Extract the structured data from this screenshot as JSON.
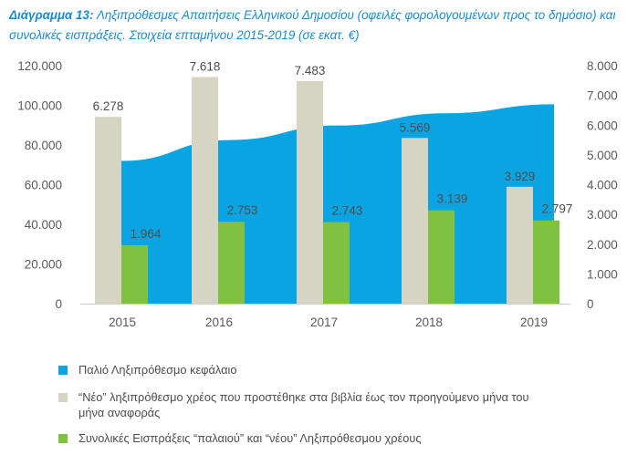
{
  "title": {
    "prefix": "Διάγραμμα 13:",
    "text": "Ληξιπρόθεσμες Απαιτήσεις Ελληνικού Δημοσίου (οφειλές φορολογουμένων προς το δημόσιο) και συνολικές εισπράξεις. Στοιχεία επταμήνου 2015-2019 (σε εκατ. €)"
  },
  "colors": {
    "old_area": "#0aa4e2",
    "new_bars": "#d6d5c4",
    "collections_bars": "#80c142",
    "title": "#1a8bcf",
    "text": "#4d4d4d"
  },
  "chart_data": {
    "type": "bar",
    "categories": [
      "2015",
      "2016",
      "2017",
      "2018",
      "2019"
    ],
    "left_axis": {
      "ylim": [
        0,
        120000
      ],
      "ticks": [
        "0",
        "20.000",
        "40.000",
        "60.000",
        "80.000",
        "100.000",
        "120.000"
      ],
      "tick_values": [
        0,
        20000,
        40000,
        60000,
        80000,
        100000,
        120000
      ]
    },
    "right_axis": {
      "ylim": [
        0,
        8000
      ],
      "ticks": [
        "0",
        "1.000",
        "2.000",
        "3.000",
        "4.000",
        "5.000",
        "6.000",
        "7.000",
        "8.000"
      ],
      "tick_values": [
        0,
        1000,
        2000,
        3000,
        4000,
        5000,
        6000,
        7000,
        8000
      ]
    },
    "series": [
      {
        "name": "Παλιό Ληξιπρόθεσμο κεφάλαιο",
        "type": "area",
        "axis": "left",
        "values": [
          72000,
          82500,
          89800,
          96000,
          100500
        ]
      },
      {
        "name": "“Νέο” ληξιπρόθεσμο χρέος που προστέθηκε στα βιβλία έως τον προηγούμενο μήνα του μήνα αναφοράς",
        "type": "bar",
        "axis": "right",
        "values": [
          6278,
          7618,
          7483,
          5569,
          3929
        ],
        "labels": [
          "6.278",
          "7.618",
          "7.483",
          "5.569",
          "3.929"
        ]
      },
      {
        "name": "Συνολικές Εισπράξεις “παλαιού” και “νέου” Ληξιπρόθεσμου χρέους",
        "type": "bar",
        "axis": "right",
        "values": [
          1964,
          2753,
          2743,
          3139,
          2797
        ],
        "labels": [
          "1.964",
          "2.753",
          "2.743",
          "3.139",
          "2.797"
        ]
      }
    ]
  }
}
